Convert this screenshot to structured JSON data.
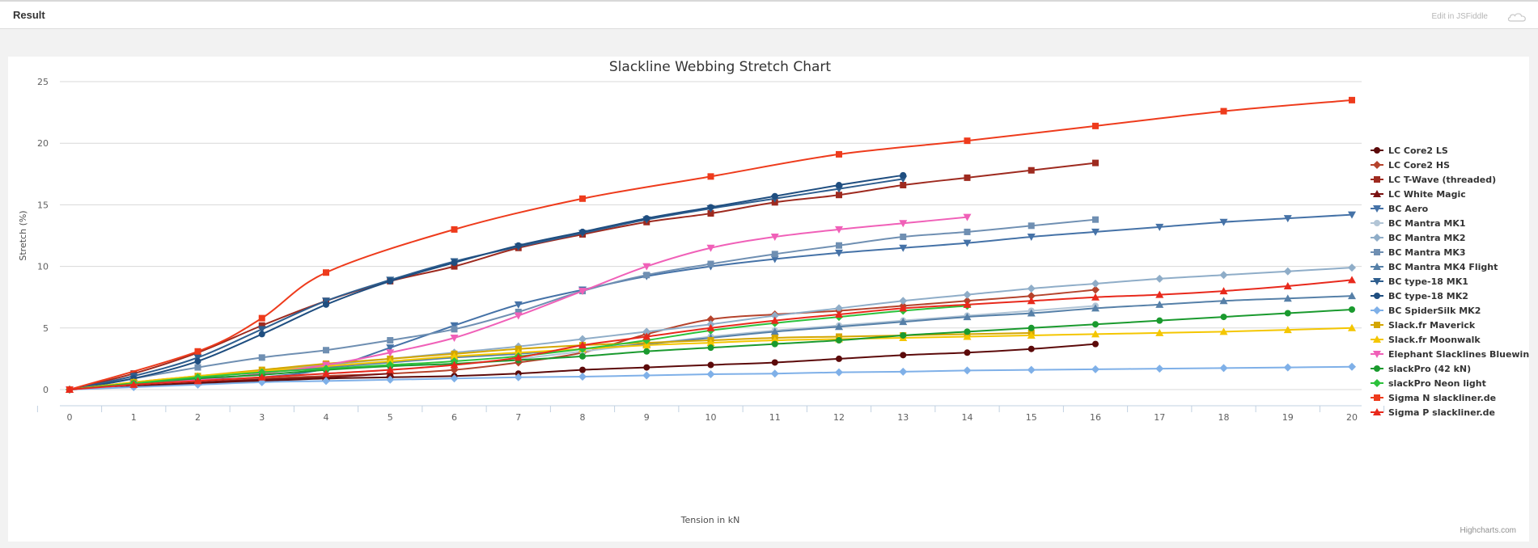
{
  "topbar": {
    "result_label": "Result",
    "edit_link": "Edit in JSFiddle",
    "credit": "Highcharts.com"
  },
  "chart_data": {
    "type": "line",
    "title": "Slackline Webbing Stretch Chart",
    "xlabel": "Tension in kN",
    "ylabel": "Stretch (%)",
    "xlim": [
      0,
      20
    ],
    "ylim": [
      0,
      25
    ],
    "xticks": [
      0,
      1,
      2,
      3,
      4,
      5,
      6,
      7,
      8,
      9,
      10,
      11,
      12,
      13,
      14,
      15,
      16,
      17,
      18,
      19,
      20
    ],
    "yticks": [
      0,
      5,
      10,
      15,
      20,
      25
    ],
    "grid": "horizontal",
    "legend_position": "right",
    "series": [
      {
        "name": "LC Core2 LS",
        "color": "#5c0a0a",
        "marker": "circle",
        "x": [
          0,
          1,
          2,
          3,
          4,
          5,
          6,
          7,
          8,
          9,
          10,
          11,
          12,
          13,
          14,
          15,
          16
        ],
        "y": [
          0,
          0.3,
          0.5,
          0.7,
          0.9,
          1.0,
          1.1,
          1.3,
          1.6,
          1.8,
          2.0,
          2.2,
          2.5,
          2.8,
          3.0,
          3.3,
          3.7
        ]
      },
      {
        "name": "LC Core2 HS",
        "color": "#b5432c",
        "marker": "diamond",
        "x": [
          0,
          1,
          2,
          3,
          4,
          5,
          6,
          7,
          8,
          9,
          10,
          11,
          12,
          13,
          14,
          15,
          16
        ],
        "y": [
          0,
          0.4,
          0.7,
          0.9,
          1.1,
          1.3,
          1.6,
          2.2,
          3.0,
          4.5,
          5.7,
          6.1,
          6.4,
          6.8,
          7.2,
          7.6,
          8.1
        ]
      },
      {
        "name": "LC T-Wave (threaded)",
        "color": "#9e2a1f",
        "marker": "square",
        "x": [
          0,
          1,
          2,
          3,
          4,
          5,
          6,
          7,
          8,
          9,
          10,
          11,
          12,
          13,
          14,
          15,
          16
        ],
        "y": [
          0,
          1.3,
          3.0,
          5.2,
          7.2,
          8.8,
          10.0,
          11.5,
          12.6,
          13.6,
          14.3,
          15.2,
          15.8,
          16.6,
          17.2,
          17.8,
          18.4
        ]
      },
      {
        "name": "LC White Magic",
        "color": "#7a1212",
        "marker": "triangle",
        "x": [
          0,
          1,
          2,
          3,
          4,
          5
        ],
        "y": [
          0,
          0.4,
          0.6,
          0.8,
          1.0,
          1.3
        ]
      },
      {
        "name": "BC Aero",
        "color": "#4572a7",
        "marker": "triangle-down",
        "x": [
          0,
          1,
          2,
          3,
          4,
          5,
          6,
          7,
          8,
          9,
          10,
          11,
          12,
          13,
          14,
          15,
          16,
          17,
          18,
          19,
          20
        ],
        "y": [
          0,
          0.5,
          0.8,
          1.0,
          1.7,
          3.4,
          5.2,
          6.9,
          8.1,
          9.2,
          10.0,
          10.6,
          11.1,
          11.5,
          11.9,
          12.4,
          12.8,
          13.2,
          13.6,
          13.9,
          14.2
        ]
      },
      {
        "name": "BC Mantra MK1",
        "color": "#b2c5d6",
        "marker": "circle",
        "x": [
          0,
          1,
          2,
          3,
          4,
          5,
          6,
          7,
          8,
          9,
          10,
          11,
          12,
          13,
          14,
          15,
          16
        ],
        "y": [
          0,
          0.4,
          0.7,
          1.0,
          1.3,
          1.6,
          2.0,
          2.5,
          3.1,
          3.7,
          4.3,
          4.8,
          5.2,
          5.6,
          6.0,
          6.4,
          6.8
        ]
      },
      {
        "name": "BC Mantra MK2",
        "color": "#8fadc8",
        "marker": "diamond",
        "x": [
          0,
          1,
          2,
          3,
          4,
          5,
          6,
          7,
          8,
          9,
          10,
          11,
          12,
          13,
          14,
          15,
          16,
          17,
          18,
          19,
          20
        ],
        "y": [
          0,
          0.5,
          1.0,
          1.5,
          2.0,
          2.5,
          3.0,
          3.5,
          4.1,
          4.7,
          5.3,
          6.0,
          6.6,
          7.2,
          7.7,
          8.2,
          8.6,
          9.0,
          9.3,
          9.6,
          9.9
        ]
      },
      {
        "name": "BC Mantra MK3",
        "color": "#6f8fb2",
        "marker": "square",
        "x": [
          0,
          1,
          2,
          3,
          4,
          5,
          6,
          7,
          8,
          9,
          10,
          11,
          12,
          13,
          14,
          15,
          16
        ],
        "y": [
          0,
          0.9,
          1.8,
          2.6,
          3.2,
          4.0,
          4.9,
          6.3,
          8.0,
          9.3,
          10.2,
          11.0,
          11.7,
          12.4,
          12.8,
          13.3,
          13.8
        ]
      },
      {
        "name": "BC Mantra MK4 Flight",
        "color": "#5680a8",
        "marker": "triangle",
        "x": [
          0,
          1,
          2,
          3,
          4,
          5,
          6,
          7,
          8,
          9,
          10,
          11,
          12,
          13,
          14,
          15,
          16,
          17,
          18,
          19,
          20
        ],
        "y": [
          0,
          0.5,
          1.0,
          1.4,
          1.8,
          2.2,
          2.6,
          2.9,
          3.3,
          3.7,
          4.2,
          4.7,
          5.1,
          5.5,
          5.9,
          6.2,
          6.6,
          6.9,
          7.2,
          7.4,
          7.6
        ]
      },
      {
        "name": "BC type-18 MK1",
        "color": "#2f5e8e",
        "marker": "triangle-down",
        "x": [
          0,
          1,
          2,
          3,
          4,
          5,
          6,
          7,
          8,
          9,
          10,
          11,
          12,
          13
        ],
        "y": [
          0,
          1.1,
          2.6,
          4.9,
          7.2,
          8.9,
          10.4,
          11.6,
          12.7,
          13.8,
          14.7,
          15.5,
          16.3,
          17.1
        ]
      },
      {
        "name": "BC type-18 MK2",
        "color": "#1f4e80",
        "marker": "circle",
        "x": [
          0,
          1,
          2,
          3,
          4,
          5,
          6,
          7,
          8,
          9,
          10,
          11,
          12,
          13
        ],
        "y": [
          0,
          0.9,
          2.3,
          4.5,
          6.9,
          8.8,
          10.3,
          11.7,
          12.8,
          13.9,
          14.8,
          15.7,
          16.6,
          17.4
        ]
      },
      {
        "name": "BC SpiderSilk MK2",
        "color": "#7fb0e8",
        "marker": "diamond",
        "x": [
          0,
          1,
          2,
          3,
          4,
          5,
          6,
          7,
          8,
          9,
          10,
          11,
          12,
          13,
          14,
          15,
          16,
          17,
          18,
          19,
          20
        ],
        "y": [
          0,
          0.2,
          0.4,
          0.6,
          0.7,
          0.8,
          0.9,
          1.0,
          1.05,
          1.15,
          1.25,
          1.3,
          1.4,
          1.45,
          1.55,
          1.6,
          1.65,
          1.7,
          1.75,
          1.8,
          1.85
        ]
      },
      {
        "name": "Slack.fr Maverick",
        "color": "#d4a600",
        "marker": "square",
        "x": [
          0,
          1,
          2,
          3,
          4,
          5,
          6,
          7,
          8,
          9,
          10,
          11,
          12,
          13,
          14,
          15
        ],
        "y": [
          0,
          0.6,
          1.1,
          1.6,
          2.1,
          2.5,
          2.9,
          3.3,
          3.6,
          3.8,
          4.0,
          4.2,
          4.3,
          4.4,
          4.5,
          4.6
        ]
      },
      {
        "name": "Slack.fr Moonwalk",
        "color": "#f4c600",
        "marker": "triangle",
        "x": [
          0,
          1,
          2,
          3,
          4,
          5,
          6,
          7,
          8,
          9,
          10,
          11,
          12,
          13,
          14,
          15,
          16,
          17,
          18,
          19,
          20
        ],
        "y": [
          0,
          0.6,
          1.1,
          1.5,
          1.9,
          2.3,
          2.7,
          3.0,
          3.3,
          3.6,
          3.8,
          4.0,
          4.1,
          4.2,
          4.3,
          4.4,
          4.5,
          4.6,
          4.7,
          4.85,
          5.0
        ]
      },
      {
        "name": "Elephant Slacklines Bluewing",
        "color": "#f060b8",
        "marker": "triangle-down",
        "x": [
          0,
          1,
          2,
          3,
          4,
          5,
          6,
          7,
          8,
          9,
          10,
          11,
          12,
          13,
          14
        ],
        "y": [
          0,
          0.4,
          0.8,
          1.3,
          2.0,
          3.0,
          4.2,
          6.0,
          8.0,
          10.0,
          11.5,
          12.4,
          13.0,
          13.5,
          14.0
        ]
      },
      {
        "name": "slackPro (42 kN)",
        "color": "#1a9a2e",
        "marker": "circle",
        "x": [
          0,
          1,
          2,
          3,
          4,
          5,
          6,
          7,
          8,
          9,
          10,
          11,
          12,
          13,
          14,
          15,
          16,
          17,
          18,
          19,
          20
        ],
        "y": [
          0,
          0.5,
          0.9,
          1.2,
          1.6,
          1.9,
          2.1,
          2.4,
          2.7,
          3.1,
          3.4,
          3.7,
          4.0,
          4.4,
          4.7,
          5.0,
          5.3,
          5.6,
          5.9,
          6.2,
          6.5
        ]
      },
      {
        "name": "slackPro Neon light",
        "color": "#2cc23c",
        "marker": "diamond",
        "x": [
          0,
          1,
          2,
          3,
          4,
          5,
          6,
          7,
          8,
          9,
          10,
          11,
          12,
          13,
          14
        ],
        "y": [
          0,
          0.5,
          1.0,
          1.4,
          1.7,
          2.0,
          2.3,
          2.7,
          3.3,
          4.0,
          4.8,
          5.4,
          5.9,
          6.4,
          6.8
        ]
      },
      {
        "name": "Sigma N slackliner.de",
        "color": "#ee3b1c",
        "marker": "square",
        "x": [
          0,
          2,
          3,
          4,
          6,
          8,
          10,
          12,
          14,
          16,
          18,
          20
        ],
        "y": [
          0,
          3.1,
          5.8,
          9.5,
          13.0,
          15.5,
          17.3,
          19.1,
          20.2,
          21.4,
          22.6,
          23.5
        ]
      },
      {
        "name": "Sigma P slackliner.de",
        "color": "#e8291c",
        "marker": "triangle",
        "x": [
          0,
          1,
          2,
          3,
          4,
          5,
          6,
          7,
          8,
          9,
          10,
          11,
          12,
          13,
          14,
          15,
          16,
          17,
          18,
          19,
          20
        ],
        "y": [
          0,
          0.4,
          0.7,
          1.0,
          1.3,
          1.6,
          2.0,
          2.6,
          3.6,
          4.3,
          5.0,
          5.6,
          6.1,
          6.6,
          6.9,
          7.2,
          7.5,
          7.7,
          8.0,
          8.4,
          8.9
        ]
      }
    ]
  }
}
